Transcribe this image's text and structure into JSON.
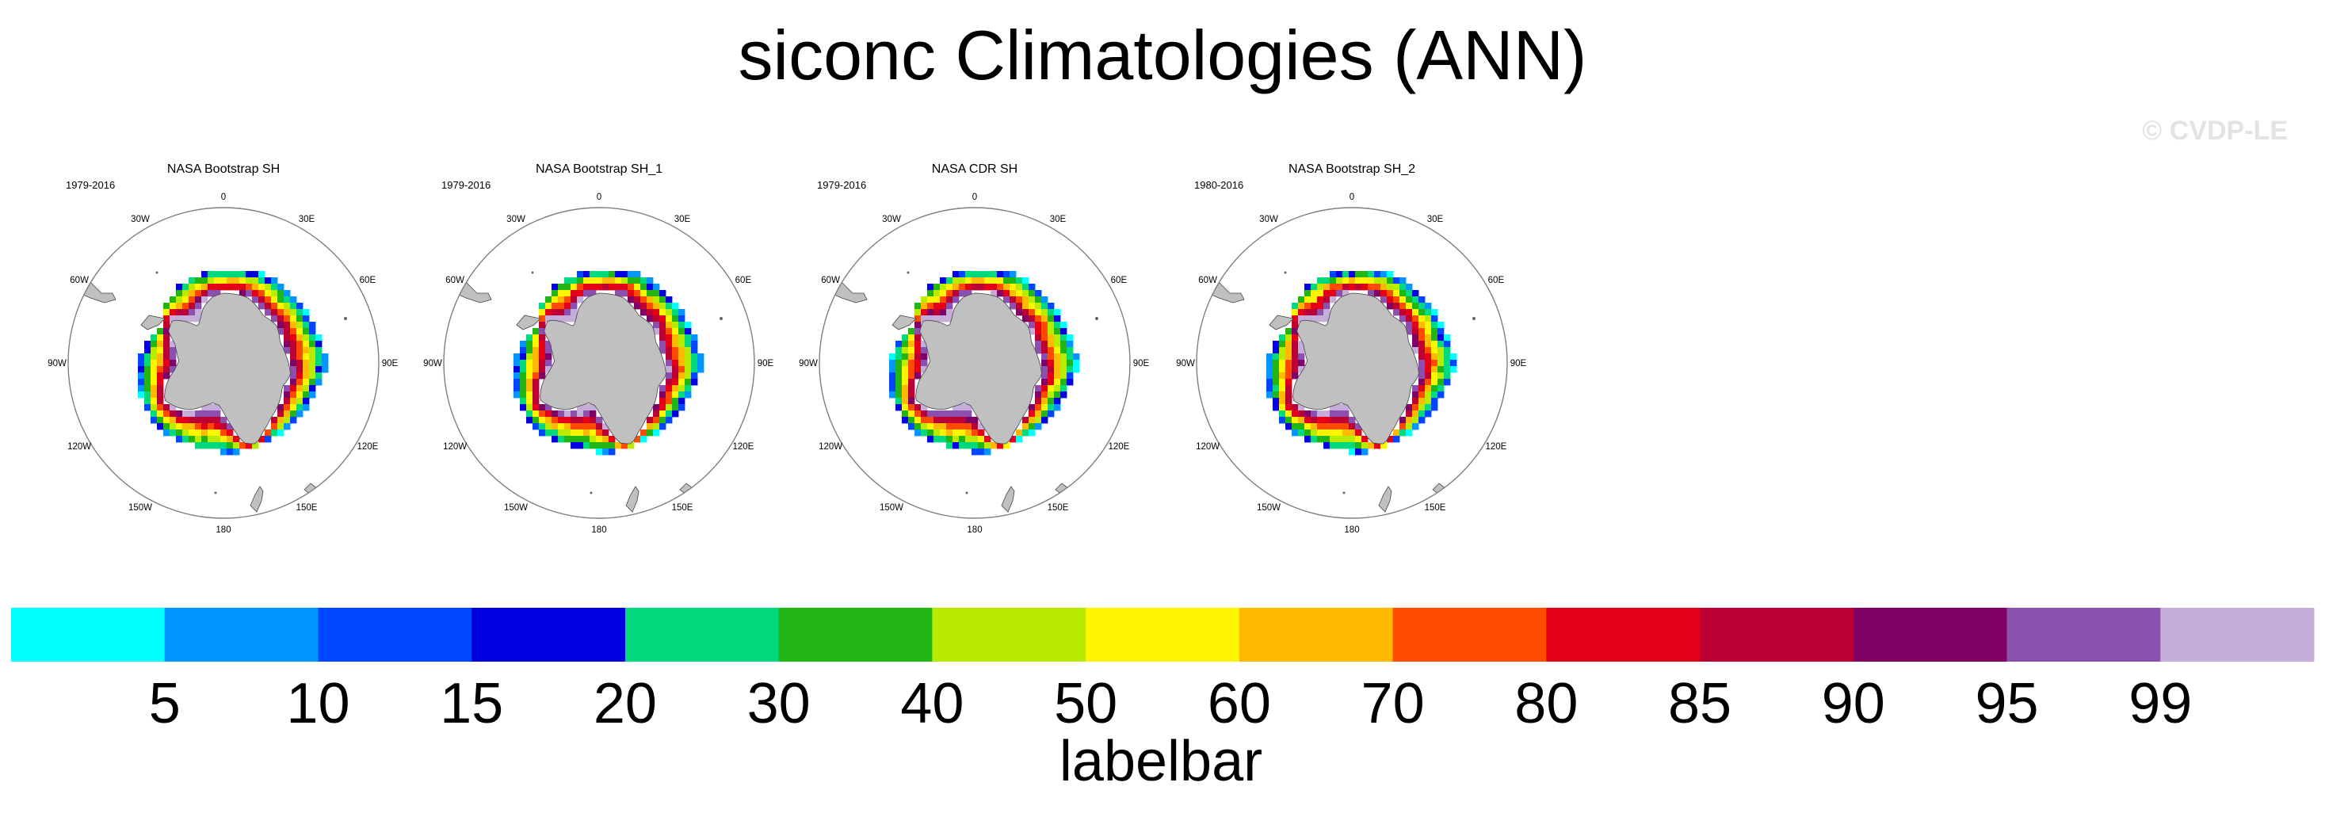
{
  "title": "siconc Climatologies (ANN)",
  "watermark": "© CVDP-LE",
  "chart_data": {
    "type": "polar-map",
    "variable": "siconc",
    "season": "ANN",
    "projection": "south-polar-stereographic",
    "panels": [
      {
        "title": "NASA Bootstrap SH",
        "years": "1979-2016"
      },
      {
        "title": "NASA Bootstrap SH_1",
        "years": "1979-2016"
      },
      {
        "title": "NASA CDR SH",
        "years": "1979-2016"
      },
      {
        "title": "NASA Bootstrap SH_2",
        "years": "1980-2016"
      }
    ],
    "longitude_labels": [
      "0",
      "30E",
      "60E",
      "90E",
      "120E",
      "150E",
      "180",
      "150W",
      "120W",
      "90W",
      "60W",
      "30W"
    ],
    "labelbar": {
      "title": "labelbar",
      "levels": [
        "5",
        "10",
        "15",
        "20",
        "30",
        "40",
        "50",
        "60",
        "70",
        "80",
        "85",
        "90",
        "95",
        "99"
      ],
      "colors": [
        "#00ffff",
        "#0095ff",
        "#0045ff",
        "#0000e1",
        "#00d97c",
        "#21b613",
        "#b8eb00",
        "#fff500",
        "#ffb900",
        "#ff4a00",
        "#e50018",
        "#bd0033",
        "#800066",
        "#8b4fb0",
        "#c5acd9"
      ]
    },
    "colors": {
      "land": "#c0c0c0",
      "outline": "#7f7f7f",
      "text": "#000000"
    }
  }
}
